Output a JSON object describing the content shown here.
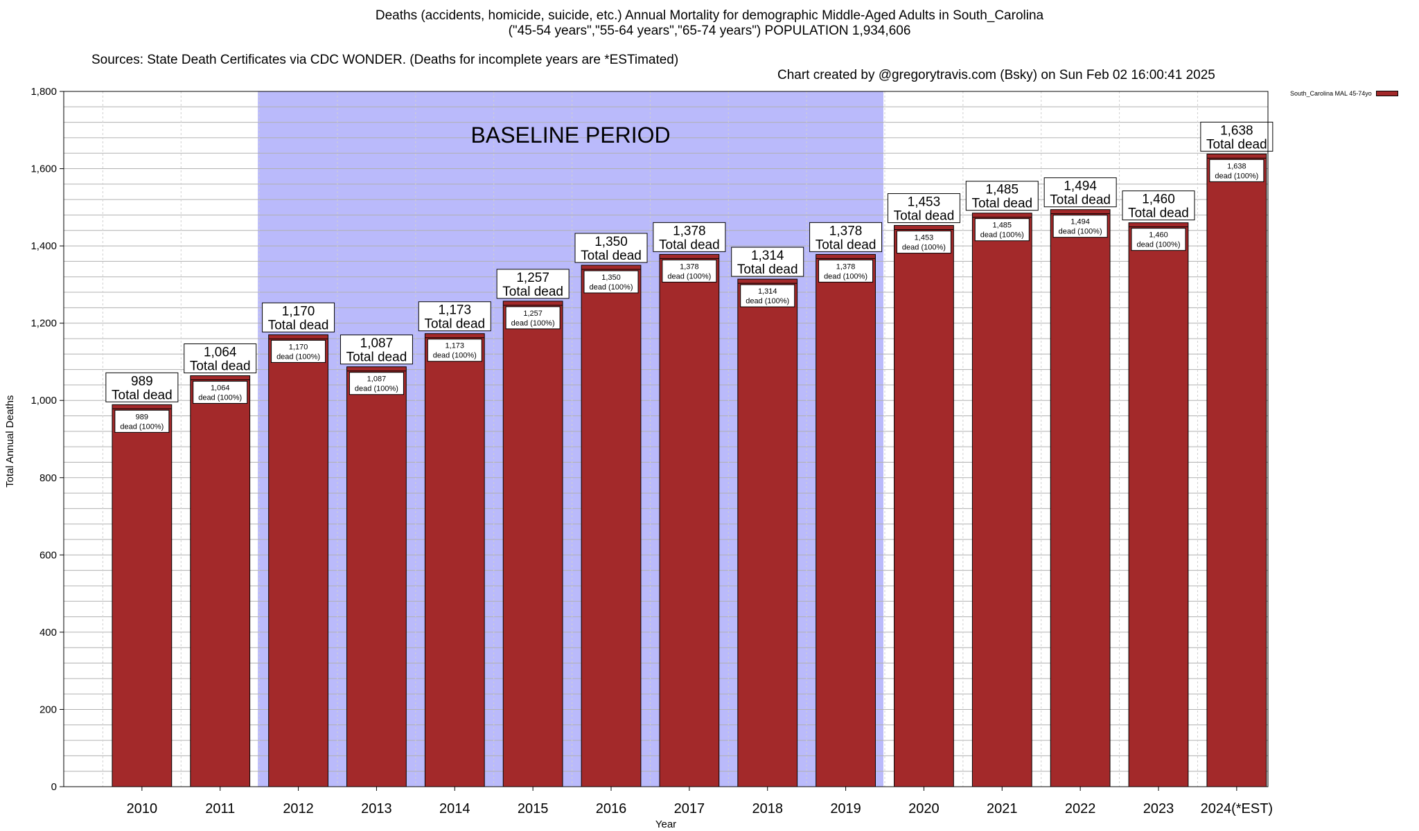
{
  "title": {
    "line1": "Deaths (accidents, homicide, suicide, etc.) Annual Mortality for demographic Middle-Aged Adults in South_Carolina",
    "line2": "(\"45-54 years\",\"55-64 years\",\"65-74 years\") POPULATION 1,934,606",
    "sources": "Sources: State Death Certificates via CDC WONDER. (Deaths for incomplete years are *ESTimated)",
    "credit": "Chart created by @gregorytravis.com (Bsky) on Sun Feb 02 16:00:41 2025"
  },
  "colors": {
    "bar": "#a3292a",
    "baseline_shade": "#babafb",
    "grid": "#b0b0b0"
  },
  "chart_data": {
    "type": "bar",
    "title": "Deaths (accidents, homicide, suicide, etc.) Annual Mortality for demographic Middle-Aged Adults in South_Carolina",
    "xlabel": "Year",
    "ylabel": "Total Annual Deaths",
    "ylim": [
      0,
      1800
    ],
    "yticks": [
      0,
      200,
      400,
      600,
      800,
      1000,
      1200,
      1400,
      1600,
      1800
    ],
    "ytick_labels": [
      "0",
      "200",
      "400",
      "600",
      "800",
      "1,000",
      "1,200",
      "1,400",
      "1,600",
      "1,800"
    ],
    "grid": true,
    "legend_position": "top-right",
    "categories": [
      "2010",
      "2011",
      "2012",
      "2013",
      "2014",
      "2015",
      "2016",
      "2017",
      "2018",
      "2019",
      "2020",
      "2021",
      "2022",
      "2023",
      "2024(*EST)"
    ],
    "series": [
      {
        "name": "South_Carolina MAL 45-74yo",
        "values": [
          989,
          1064,
          1170,
          1087,
          1173,
          1257,
          1350,
          1378,
          1314,
          1378,
          1453,
          1485,
          1494,
          1460,
          1638
        ],
        "value_labels": [
          "989",
          "1,064",
          "1,170",
          "1,087",
          "1,173",
          "1,257",
          "1,350",
          "1,378",
          "1,314",
          "1,378",
          "1,453",
          "1,485",
          "1,494",
          "1,460",
          "1,638"
        ]
      }
    ],
    "top_label_suffix": "Total dead",
    "inner_label_suffix": "dead (100%)",
    "annotations": [
      {
        "text": "BASELINE PERIOD",
        "x_start": "2012",
        "x_end": "2019"
      }
    ]
  }
}
